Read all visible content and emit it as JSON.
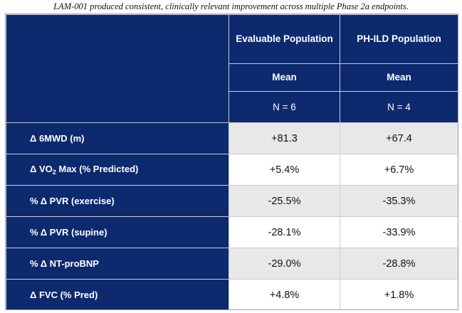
{
  "caption": "LAM-001 produced consistent, clinically relevant improvement across multiple Phase 2a endpoints.",
  "columns": [
    {
      "title": "Evaluable Population",
      "stat": "Mean",
      "n": "N = 6"
    },
    {
      "title": "PH-ILD Population",
      "stat": "Mean",
      "n": "N = 4"
    }
  ],
  "rows": [
    {
      "label": "Δ 6MWD (m)",
      "v1": "+81.3",
      "v2": "+67.4"
    },
    {
      "label_pre": "Δ VO",
      "label_sub": "2",
      "label_post": " Max (% Predicted)",
      "v1": "+5.4%",
      "v2": "+6.7%"
    },
    {
      "label": "% Δ PVR (exercise)",
      "v1": "-25.5%",
      "v2": "-35.3%"
    },
    {
      "label": "% Δ PVR (supine)",
      "v1": "-28.1%",
      "v2": "-33.9%"
    },
    {
      "label": "% Δ NT-proBNP",
      "v1": "-29.0%",
      "v2": "-28.8%"
    },
    {
      "label": "Δ FVC (% Pred)",
      "v1": "+4.8%",
      "v2": "+1.8%"
    }
  ],
  "colors": {
    "header_bg": "#0e2a6e",
    "cell_bg": "#e8e8e8",
    "cell_alt_bg": "#ffffff"
  }
}
